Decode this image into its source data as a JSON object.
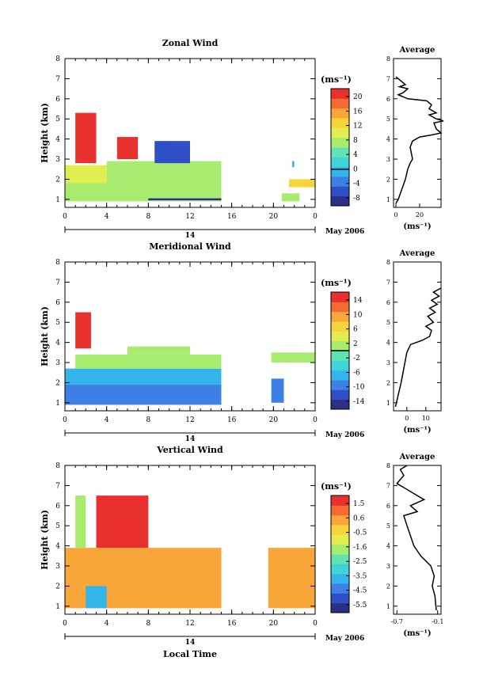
{
  "colormap": [
    "#2b2f86",
    "#2f4fc6",
    "#3f80e6",
    "#34b5ea",
    "#3fd4d8",
    "#63e3b4",
    "#a7ec6e",
    "#e2ee4f",
    "#f8d43b",
    "#f8a63a",
    "#f46a32",
    "#e8302d"
  ],
  "chart_data": [
    {
      "type": "heatmap",
      "title": "Zonal Wind",
      "ylabel": "Height (km)",
      "xlabel": "",
      "x_ticks": [
        "0",
        "4",
        "8",
        "12",
        "16",
        "20",
        "0"
      ],
      "y_ticks": [
        "1",
        "2",
        "3",
        "4",
        "5",
        "6",
        "7",
        "8"
      ],
      "xlim": [
        0,
        24
      ],
      "ylim": [
        0.6,
        8
      ],
      "date_label": "14",
      "month_label": "May 2006",
      "colorbar": {
        "unit": "(ms⁻¹)",
        "ticks": [
          "20",
          "16",
          "12",
          "8",
          "4",
          "0",
          "-4",
          "-8"
        ],
        "range": [
          -10,
          22
        ],
        "zero_line": 0
      },
      "average": {
        "title": "Average",
        "unit": "(ms⁻¹)",
        "x_ticks": [
          "0",
          "20"
        ],
        "xlim": [
          -2,
          38
        ],
        "profile": [
          [
            0,
            0.8
          ],
          [
            2,
            1.0
          ],
          [
            5,
            1.5
          ],
          [
            8,
            2.0
          ],
          [
            10,
            2.5
          ],
          [
            12,
            2.8
          ],
          [
            14,
            3.0
          ],
          [
            13,
            3.3
          ],
          [
            12,
            3.6
          ],
          [
            14,
            3.9
          ],
          [
            20,
            4.1
          ],
          [
            30,
            4.2
          ],
          [
            38,
            4.3
          ],
          [
            34,
            4.5
          ],
          [
            32,
            4.8
          ],
          [
            40,
            4.9
          ],
          [
            34,
            5.0
          ],
          [
            28,
            5.2
          ],
          [
            34,
            5.3
          ],
          [
            28,
            5.5
          ],
          [
            30,
            5.7
          ],
          [
            26,
            5.9
          ],
          [
            10,
            6.0
          ],
          [
            2,
            6.2
          ],
          [
            6,
            6.3
          ],
          [
            10,
            6.5
          ],
          [
            3,
            6.6
          ],
          [
            8,
            6.7
          ],
          [
            4,
            6.9
          ],
          [
            0,
            7.1
          ]
        ]
      },
      "blocks": [
        {
          "x": [
            0,
            15
          ],
          "y": [
            0.9,
            1.8
          ],
          "v": 7
        },
        {
          "x": [
            0,
            4
          ],
          "y": [
            1.8,
            2.7
          ],
          "v": 11
        },
        {
          "x": [
            4,
            15
          ],
          "y": [
            1.8,
            2.9
          ],
          "v": 8
        },
        {
          "x": [
            1,
            3
          ],
          "y": [
            2.8,
            5.3
          ],
          "v": 20
        },
        {
          "x": [
            5,
            7
          ],
          "y": [
            3.0,
            4.1
          ],
          "v": 20
        },
        {
          "x": [
            8.6,
            12
          ],
          "y": [
            2.8,
            3.9
          ],
          "v": -5
        },
        {
          "x": [
            20.8,
            22.5
          ],
          "y": [
            0.9,
            1.3
          ],
          "v": 6
        },
        {
          "x": [
            21.5,
            24
          ],
          "y": [
            1.6,
            2.0
          ],
          "v": 12
        },
        {
          "x": [
            21.8,
            22
          ],
          "y": [
            2.6,
            2.9
          ],
          "v": 0
        },
        {
          "x": [
            8,
            15
          ],
          "y": [
            0.95,
            1.05
          ],
          "v": -10
        }
      ]
    },
    {
      "type": "heatmap",
      "title": "Meridional Wind",
      "ylabel": "Height (km)",
      "xlabel": "",
      "x_ticks": [
        "0",
        "4",
        "8",
        "12",
        "16",
        "20",
        "0"
      ],
      "y_ticks": [
        "1",
        "2",
        "3",
        "4",
        "5",
        "6",
        "7",
        "8"
      ],
      "xlim": [
        0,
        24
      ],
      "ylim": [
        0.6,
        8
      ],
      "date_label": "14",
      "month_label": "May 2006",
      "colorbar": {
        "unit": "(ms⁻¹)",
        "ticks": [
          "14",
          "10",
          "6",
          "2",
          "-2",
          "-6",
          "-10",
          "-14"
        ],
        "range": [
          -16,
          16
        ],
        "zero_line": 0
      },
      "average": {
        "title": "Average",
        "unit": "(ms⁻¹)",
        "x_ticks": [
          "0",
          "10"
        ],
        "xlim": [
          -7,
          18
        ],
        "profile": [
          [
            -6,
            0.8
          ],
          [
            -5,
            1.2
          ],
          [
            -4,
            1.6
          ],
          [
            -3,
            2.0
          ],
          [
            -2,
            2.5
          ],
          [
            -1,
            3.0
          ],
          [
            0,
            3.5
          ],
          [
            2,
            3.9
          ],
          [
            8,
            4.1
          ],
          [
            12,
            4.3
          ],
          [
            13,
            4.6
          ],
          [
            10,
            4.8
          ],
          [
            14,
            5.0
          ],
          [
            11,
            5.3
          ],
          [
            15,
            5.5
          ],
          [
            12,
            5.7
          ],
          [
            16,
            5.9
          ],
          [
            13,
            6.1
          ],
          [
            17,
            6.3
          ],
          [
            14,
            6.5
          ],
          [
            18,
            6.7
          ]
        ]
      },
      "blocks": [
        {
          "x": [
            0,
            15
          ],
          "y": [
            0.9,
            1.9
          ],
          "v": -10
        },
        {
          "x": [
            0,
            15
          ],
          "y": [
            1.9,
            2.7
          ],
          "v": -6
        },
        {
          "x": [
            1,
            15
          ],
          "y": [
            2.7,
            3.4
          ],
          "v": 1
        },
        {
          "x": [
            6,
            12
          ],
          "y": [
            3.4,
            3.8
          ],
          "v": 2
        },
        {
          "x": [
            1,
            2.5
          ],
          "y": [
            3.7,
            5.5
          ],
          "v": 14
        },
        {
          "x": [
            19.8,
            21
          ],
          "y": [
            1.0,
            2.2
          ],
          "v": -10
        },
        {
          "x": [
            19.8,
            24
          ],
          "y": [
            3.0,
            3.5
          ],
          "v": 1
        }
      ]
    },
    {
      "type": "heatmap",
      "title": "Vertical Wind",
      "ylabel": "Height (km)",
      "xlabel": "Local Time",
      "x_ticks": [
        "0",
        "4",
        "8",
        "12",
        "16",
        "20",
        "0"
      ],
      "y_ticks": [
        "1",
        "2",
        "3",
        "4",
        "5",
        "6",
        "7",
        "8"
      ],
      "xlim": [
        0,
        24
      ],
      "ylim": [
        0.6,
        8
      ],
      "date_label": "14",
      "month_label": "May 2006",
      "colorbar": {
        "unit": "(ms⁻¹)",
        "ticks": [
          "1.5",
          "0.6",
          "-0.5",
          "-1.6",
          "-2.5",
          "-3.5",
          "-4.5",
          "-5.5"
        ],
        "range": [
          -6,
          2
        ]
      },
      "average": {
        "title": "Average",
        "unit": "(ms⁻¹)",
        "x_ticks": [
          "-0.7",
          "-0.1"
        ],
        "xlim": [
          -0.75,
          -0.05
        ],
        "profile": [
          [
            -0.12,
            0.8
          ],
          [
            -0.14,
            1.5
          ],
          [
            -0.18,
            2.0
          ],
          [
            -0.15,
            2.5
          ],
          [
            -0.2,
            3.0
          ],
          [
            -0.35,
            3.5
          ],
          [
            -0.45,
            4.0
          ],
          [
            -0.5,
            4.5
          ],
          [
            -0.55,
            5.0
          ],
          [
            -0.6,
            5.5
          ],
          [
            -0.4,
            5.7
          ],
          [
            -0.5,
            6.0
          ],
          [
            -0.3,
            6.3
          ],
          [
            -0.45,
            6.6
          ],
          [
            -0.6,
            6.9
          ],
          [
            -0.7,
            7.1
          ],
          [
            -0.6,
            7.5
          ],
          [
            -0.65,
            7.8
          ],
          [
            -0.55,
            8.0
          ]
        ]
      },
      "blocks": [
        {
          "x": [
            0,
            15
          ],
          "y": [
            0.9,
            3.9
          ],
          "v": 0.2
        },
        {
          "x": [
            2,
            4
          ],
          "y": [
            0.9,
            2.0
          ],
          "v": -3.5
        },
        {
          "x": [
            1,
            2
          ],
          "y": [
            3.9,
            6.5
          ],
          "v": -1.6
        },
        {
          "x": [
            3,
            8
          ],
          "y": [
            3.9,
            6.5
          ],
          "v": 1.5
        },
        {
          "x": [
            19.5,
            24
          ],
          "y": [
            0.9,
            3.9
          ],
          "v": 0.6
        }
      ]
    }
  ]
}
